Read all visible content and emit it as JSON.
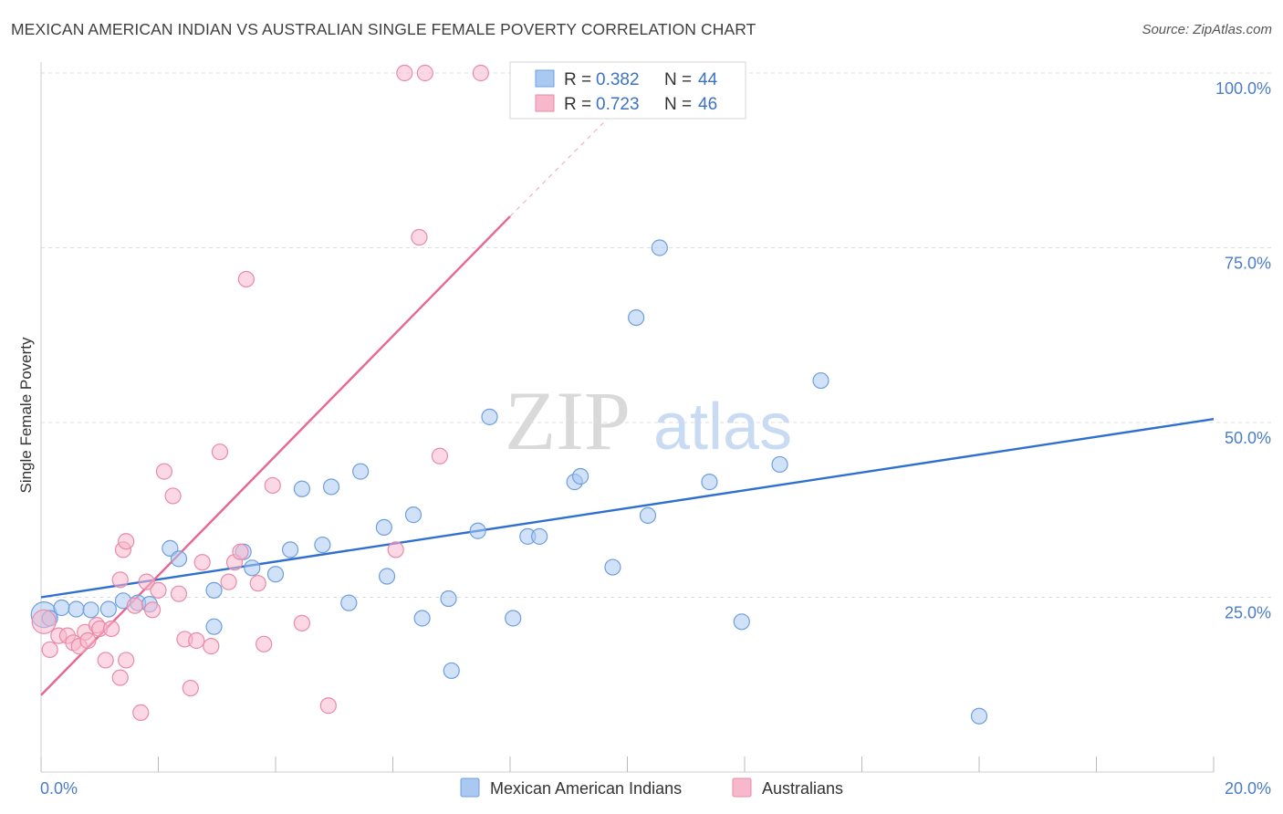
{
  "header": {
    "title": "MEXICAN AMERICAN INDIAN VS AUSTRALIAN SINGLE FEMALE POVERTY CORRELATION CHART",
    "source": "Source: ZipAtlas.com"
  },
  "watermark": {
    "zip": "ZIP",
    "atlas": "atlas"
  },
  "legend_box": {
    "rows": [
      {
        "r_label": "R = ",
        "r_value": "0.382",
        "n_label": "N = ",
        "n_value": "44"
      },
      {
        "r_label": "R = ",
        "r_value": "0.723",
        "n_label": "N = ",
        "n_value": "46"
      }
    ]
  },
  "colors": {
    "blue_fill": "#a9c8f2",
    "blue_stroke": "#6e9fdd",
    "blue_line": "#2f6fd0",
    "pink_fill": "#f7b8cc",
    "pink_stroke": "#e98aa8",
    "pink_line": "#e8668f",
    "tick_label": "#4a7cc9",
    "grid": "#dddddd"
  },
  "chart_data": {
    "type": "scatter",
    "title": "MEXICAN AMERICAN INDIAN VS AUSTRALIAN SINGLE FEMALE POVERTY CORRELATION CHART",
    "xlabel": "",
    "ylabel": "Single Female Poverty",
    "xlim": [
      0,
      20
    ],
    "ylim": [
      0,
      100
    ],
    "x_tick_labels": [
      "0.0%",
      "20.0%"
    ],
    "y_tick_labels": [
      "25.0%",
      "50.0%",
      "75.0%",
      "100.0%"
    ],
    "y_ticks": [
      25,
      50,
      75,
      100
    ],
    "grid": true,
    "legend_position": "bottom",
    "series": [
      {
        "name": "Mexican American Indians",
        "color": "#6e9fdd",
        "r": 0.382,
        "n": 44,
        "trend": {
          "x": [
            0,
            20
          ],
          "y": [
            25.0,
            50.5
          ]
        },
        "points": [
          [
            0.05,
            22.5
          ],
          [
            0.35,
            23.5
          ],
          [
            0.6,
            23.3
          ],
          [
            0.85,
            23.2
          ],
          [
            1.15,
            23.3
          ],
          [
            1.4,
            24.5
          ],
          [
            1.65,
            24.2
          ],
          [
            1.85,
            24.0
          ],
          [
            2.2,
            32.0
          ],
          [
            2.35,
            30.5
          ],
          [
            2.95,
            20.8
          ],
          [
            3.45,
            31.5
          ],
          [
            3.6,
            29.2
          ],
          [
            4.0,
            28.3
          ],
          [
            4.25,
            31.8
          ],
          [
            4.45,
            40.5
          ],
          [
            4.8,
            32.5
          ],
          [
            4.95,
            40.8
          ],
          [
            5.25,
            24.2
          ],
          [
            5.45,
            43.0
          ],
          [
            5.85,
            35.0
          ],
          [
            5.9,
            28.0
          ],
          [
            6.35,
            36.8
          ],
          [
            6.5,
            22.0
          ],
          [
            6.95,
            24.8
          ],
          [
            7.0,
            14.5
          ],
          [
            7.45,
            34.5
          ],
          [
            7.65,
            50.8
          ],
          [
            8.05,
            22.0
          ],
          [
            8.3,
            33.7
          ],
          [
            8.5,
            33.7
          ],
          [
            9.1,
            41.5
          ],
          [
            9.2,
            42.3
          ],
          [
            9.75,
            29.3
          ],
          [
            10.15,
            65.0
          ],
          [
            10.35,
            36.7
          ],
          [
            10.55,
            75.0
          ],
          [
            11.4,
            41.5
          ],
          [
            11.95,
            21.5
          ],
          [
            12.6,
            44.0
          ],
          [
            13.3,
            56.0
          ],
          [
            16.0,
            8.0
          ],
          [
            0.15,
            22.0
          ],
          [
            2.95,
            26.0
          ]
        ]
      },
      {
        "name": "Australians",
        "color": "#e98aa8",
        "r": 0.723,
        "n": 46,
        "trend": {
          "x": [
            0,
            8.0
          ],
          "y": [
            11.0,
            79.5
          ]
        },
        "trend_dashed": {
          "x": [
            8.0,
            10.2
          ],
          "y": [
            79.5,
            98.0
          ]
        },
        "points": [
          [
            0.05,
            21.5
          ],
          [
            0.15,
            17.5
          ],
          [
            0.3,
            19.5
          ],
          [
            0.45,
            19.5
          ],
          [
            0.55,
            18.5
          ],
          [
            0.65,
            18.0
          ],
          [
            0.75,
            20.0
          ],
          [
            0.8,
            18.8
          ],
          [
            0.95,
            21.0
          ],
          [
            1.0,
            20.5
          ],
          [
            1.1,
            16.0
          ],
          [
            1.2,
            20.5
          ],
          [
            1.35,
            13.5
          ],
          [
            1.45,
            16.0
          ],
          [
            1.6,
            23.8
          ],
          [
            1.7,
            8.5
          ],
          [
            1.8,
            27.2
          ],
          [
            1.9,
            23.2
          ],
          [
            2.0,
            26.0
          ],
          [
            2.1,
            43.0
          ],
          [
            2.25,
            39.5
          ],
          [
            2.35,
            25.5
          ],
          [
            2.45,
            19.0
          ],
          [
            2.55,
            12.0
          ],
          [
            2.65,
            18.8
          ],
          [
            2.75,
            30.0
          ],
          [
            2.9,
            18.0
          ],
          [
            3.05,
            45.8
          ],
          [
            3.2,
            27.2
          ],
          [
            3.3,
            30.0
          ],
          [
            3.4,
            31.5
          ],
          [
            3.5,
            70.5
          ],
          [
            3.7,
            27.0
          ],
          [
            3.8,
            18.3
          ],
          [
            3.95,
            41.0
          ],
          [
            4.45,
            21.3
          ],
          [
            4.9,
            9.5
          ],
          [
            6.05,
            31.8
          ],
          [
            6.45,
            76.5
          ],
          [
            6.8,
            45.2
          ],
          [
            6.2,
            100.0
          ],
          [
            6.55,
            100.0
          ],
          [
            7.5,
            100.0
          ],
          [
            1.35,
            27.5
          ],
          [
            1.4,
            31.8
          ],
          [
            1.45,
            33.0
          ]
        ]
      }
    ]
  },
  "bottom_legend": {
    "items": [
      {
        "label": "Mexican American Indians"
      },
      {
        "label": "Australians"
      }
    ]
  }
}
